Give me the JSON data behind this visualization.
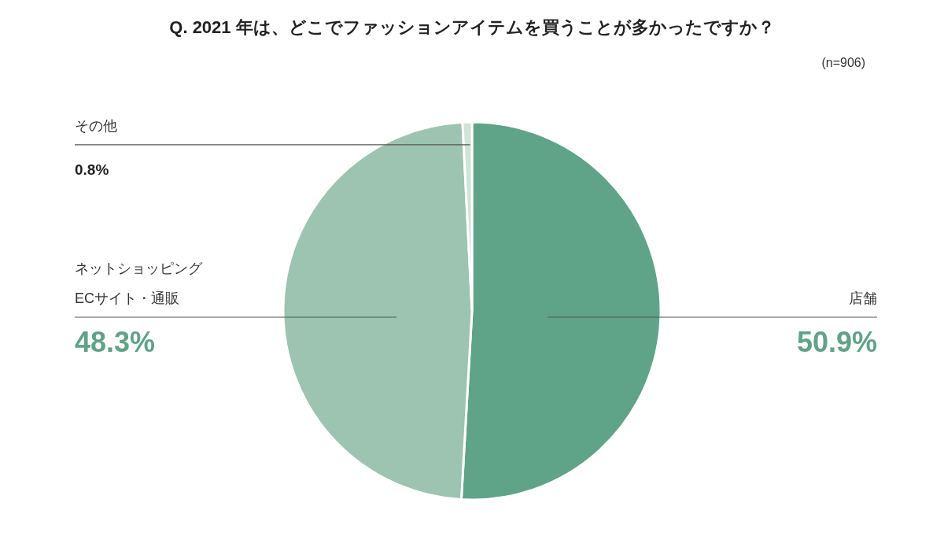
{
  "chart_data": {
    "type": "pie",
    "title": "Q. 2021 年は、どこでファッションアイテムを買うことが多かったですか？",
    "annotations": [
      "(n=906)"
    ],
    "categories": [
      "店舗",
      "ネットショッピング\nECサイト・通販",
      "その他"
    ],
    "values": [
      50.9,
      48.3,
      0.8
    ],
    "value_labels": [
      "50.9%",
      "48.3%",
      "0.8%"
    ],
    "colors": [
      "#5fa388",
      "#9cc4b0",
      "#cfe3d8"
    ]
  }
}
